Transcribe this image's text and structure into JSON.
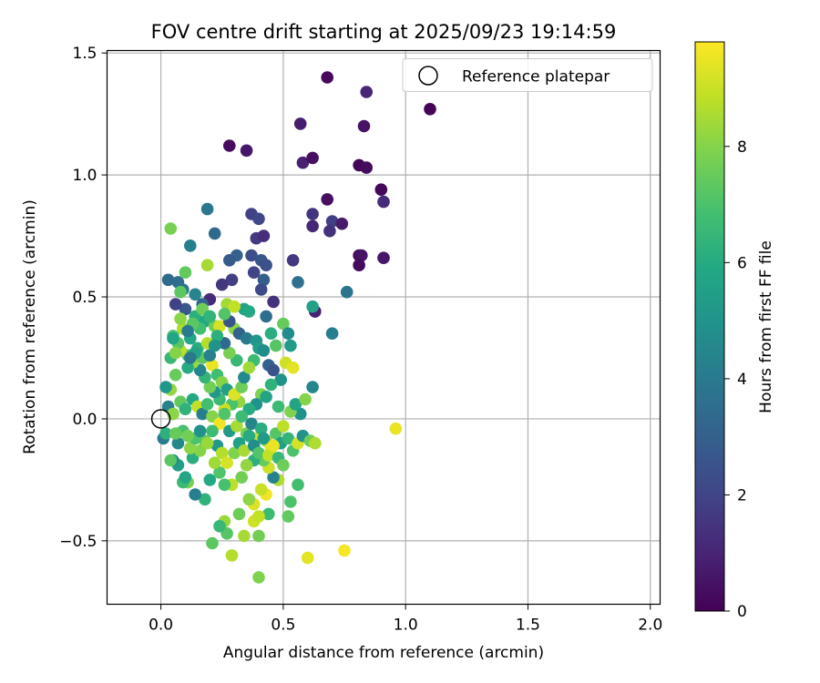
{
  "chart_data": {
    "type": "scatter",
    "title": "FOV centre drift starting at 2025/09/23 19:14:59",
    "xlabel": "Angular distance from reference (arcmin)",
    "ylabel": "Rotation from reference (arcmin)",
    "xlim": [
      -0.22,
      2.04
    ],
    "ylim": [
      -0.76,
      1.51
    ],
    "xticks": [
      0.0,
      0.5,
      1.0,
      1.5,
      2.0
    ],
    "xtick_labels": [
      "0.0",
      "0.5",
      "1.0",
      "1.5",
      "2.0"
    ],
    "yticks": [
      -0.5,
      0.0,
      0.5,
      1.0,
      1.5
    ],
    "ytick_labels": [
      "−0.5",
      "0.0",
      "0.5",
      "1.0",
      "1.5"
    ],
    "grid": true,
    "legend": {
      "position": "top-right",
      "entries": [
        "Reference platepar"
      ]
    },
    "reference_point": {
      "x": 0.0,
      "y": 0.0,
      "label": "Reference platepar"
    },
    "colorbar": {
      "label": "Hours from first FF file",
      "range": [
        0,
        9.8
      ],
      "ticks": [
        0,
        2,
        4,
        6,
        8
      ],
      "tick_labels": [
        "0",
        "2",
        "4",
        "6",
        "8"
      ],
      "colormap": "viridis"
    },
    "points": [
      [
        0.68,
        1.4,
        0.2
      ],
      [
        1.1,
        1.27,
        0.1
      ],
      [
        0.84,
        1.34,
        1.0
      ],
      [
        0.57,
        1.21,
        0.8
      ],
      [
        0.83,
        1.2,
        0.5
      ],
      [
        0.28,
        1.12,
        0.3
      ],
      [
        0.35,
        1.1,
        0.6
      ],
      [
        0.58,
        1.05,
        0.9
      ],
      [
        0.62,
        1.07,
        0.4
      ],
      [
        0.81,
        1.04,
        0.1
      ],
      [
        0.84,
        1.03,
        0.3
      ],
      [
        0.9,
        0.94,
        0.2
      ],
      [
        0.68,
        0.9,
        0.4
      ],
      [
        0.91,
        0.89,
        1.2
      ],
      [
        0.62,
        0.84,
        1.5
      ],
      [
        0.7,
        0.81,
        1.8
      ],
      [
        0.74,
        0.8,
        0.7
      ],
      [
        0.62,
        0.79,
        1.1
      ],
      [
        0.69,
        0.77,
        1.4
      ],
      [
        0.81,
        0.67,
        0.2
      ],
      [
        0.82,
        0.67,
        0.5
      ],
      [
        0.81,
        0.63,
        0.3
      ],
      [
        0.91,
        0.66,
        0.6
      ],
      [
        0.54,
        0.65,
        1.6
      ],
      [
        0.37,
        0.84,
        1.9
      ],
      [
        0.4,
        0.82,
        2.1
      ],
      [
        0.39,
        0.74,
        1.7
      ],
      [
        0.42,
        0.75,
        1.3
      ],
      [
        0.37,
        0.67,
        2.3
      ],
      [
        0.41,
        0.65,
        2.6
      ],
      [
        0.31,
        0.67,
        3.0
      ],
      [
        0.22,
        0.76,
        3.3
      ],
      [
        0.19,
        0.86,
        3.9
      ],
      [
        0.12,
        0.71,
        4.2
      ],
      [
        0.28,
        0.65,
        2.8
      ],
      [
        0.43,
        0.63,
        2.4
      ],
      [
        0.38,
        0.6,
        2.0
      ],
      [
        0.42,
        0.57,
        2.9
      ],
      [
        0.29,
        0.57,
        1.8
      ],
      [
        0.25,
        0.55,
        1.5
      ],
      [
        0.56,
        0.56,
        3.6
      ],
      [
        0.76,
        0.52,
        3.8
      ],
      [
        0.41,
        0.53,
        2.2
      ],
      [
        0.2,
        0.49,
        1.2
      ],
      [
        0.46,
        0.48,
        1.4
      ],
      [
        0.63,
        0.44,
        0.9
      ],
      [
        0.7,
        0.35,
        4.1
      ],
      [
        0.62,
        0.46,
        5.6
      ],
      [
        0.07,
        0.56,
        3.5
      ],
      [
        0.09,
        0.53,
        3.7
      ],
      [
        0.14,
        0.51,
        4.4
      ],
      [
        0.17,
        0.47,
        3.2
      ],
      [
        0.1,
        0.45,
        2.7
      ],
      [
        0.06,
        0.47,
        1.9
      ],
      [
        0.03,
        0.57,
        3.4
      ],
      [
        0.04,
        0.78,
        7.8
      ],
      [
        0.1,
        0.6,
        7.4
      ],
      [
        0.19,
        0.63,
        8.5
      ],
      [
        0.08,
        0.52,
        7.3
      ],
      [
        0.14,
        0.42,
        6.2
      ],
      [
        0.18,
        0.4,
        5.9
      ],
      [
        0.22,
        0.38,
        7.6
      ],
      [
        0.24,
        0.38,
        9.2
      ],
      [
        0.3,
        0.37,
        8.1
      ],
      [
        0.28,
        0.4,
        2.6
      ],
      [
        0.32,
        0.35,
        3.1
      ],
      [
        0.35,
        0.33,
        4.0
      ],
      [
        0.39,
        0.32,
        5.1
      ],
      [
        0.4,
        0.29,
        5.4
      ],
      [
        0.42,
        0.28,
        4.8
      ],
      [
        0.38,
        0.24,
        6.7
      ],
      [
        0.44,
        0.22,
        3.0
      ],
      [
        0.5,
        0.39,
        7.5
      ],
      [
        0.52,
        0.35,
        4.7
      ],
      [
        0.53,
        0.3,
        5.3
      ],
      [
        0.51,
        0.23,
        9.1
      ],
      [
        0.54,
        0.21,
        9.4
      ],
      [
        0.46,
        0.2,
        2.5
      ],
      [
        0.49,
        0.16,
        5.0
      ],
      [
        0.45,
        0.14,
        6.3
      ],
      [
        0.41,
        0.1,
        7.9
      ],
      [
        0.43,
        0.09,
        5.7
      ],
      [
        0.39,
        0.06,
        4.9
      ],
      [
        0.36,
        0.04,
        6.0
      ],
      [
        0.32,
        0.07,
        8.2
      ],
      [
        0.29,
        0.06,
        7.0
      ],
      [
        0.26,
        0.04,
        9.0
      ],
      [
        0.24,
        0.08,
        6.6
      ],
      [
        0.22,
        0.11,
        5.2
      ],
      [
        0.2,
        0.13,
        7.7
      ],
      [
        0.18,
        0.17,
        6.4
      ],
      [
        0.16,
        0.2,
        4.5
      ],
      [
        0.13,
        0.23,
        8.3
      ],
      [
        0.11,
        0.26,
        7.1
      ],
      [
        0.08,
        0.28,
        8.8
      ],
      [
        0.07,
        0.31,
        7.2
      ],
      [
        0.05,
        0.34,
        6.9
      ],
      [
        0.09,
        0.37,
        8.6
      ],
      [
        0.12,
        0.33,
        5.8
      ],
      [
        0.15,
        0.29,
        6.1
      ],
      [
        0.17,
        0.25,
        7.3
      ],
      [
        0.21,
        0.22,
        9.5
      ],
      [
        0.23,
        0.18,
        6.8
      ],
      [
        0.25,
        0.15,
        8.0
      ],
      [
        0.27,
        0.12,
        5.5
      ],
      [
        0.3,
        0.1,
        9.3
      ],
      [
        0.33,
        0.13,
        7.6
      ],
      [
        0.34,
        0.17,
        4.6
      ],
      [
        0.36,
        0.21,
        8.4
      ],
      [
        0.31,
        0.24,
        6.5
      ],
      [
        0.28,
        0.27,
        7.8
      ],
      [
        0.26,
        0.31,
        3.3
      ],
      [
        0.23,
        0.34,
        6.2
      ],
      [
        0.19,
        0.31,
        8.7
      ],
      [
        0.14,
        0.27,
        5.6
      ],
      [
        0.11,
        0.21,
        6.0
      ],
      [
        0.06,
        0.18,
        7.5
      ],
      [
        0.04,
        0.12,
        8.2
      ],
      [
        0.02,
        0.13,
        5.1
      ],
      [
        0.03,
        0.05,
        4.3
      ],
      [
        0.05,
        0.02,
        8.1
      ],
      [
        0.08,
        0.07,
        7.4
      ],
      [
        0.1,
        0.04,
        6.3
      ],
      [
        0.13,
        0.08,
        5.9
      ],
      [
        0.15,
        0.05,
        8.9
      ],
      [
        0.17,
        0.02,
        4.2
      ],
      [
        0.19,
        0.06,
        6.8
      ],
      [
        0.21,
        0.01,
        8.0
      ],
      [
        0.24,
        -0.02,
        9.6
      ],
      [
        0.26,
        0.02,
        7.1
      ],
      [
        0.28,
        -0.05,
        5.3
      ],
      [
        0.31,
        -0.03,
        8.5
      ],
      [
        0.33,
        0.01,
        6.7
      ],
      [
        0.35,
        -0.06,
        7.8
      ],
      [
        0.37,
        -0.02,
        4.4
      ],
      [
        0.39,
        -0.08,
        9.0
      ],
      [
        0.41,
        -0.04,
        6.1
      ],
      [
        0.43,
        -0.09,
        8.3
      ],
      [
        0.45,
        -0.12,
        9.4
      ],
      [
        0.47,
        -0.06,
        7.2
      ],
      [
        0.49,
        -0.1,
        5.5
      ],
      [
        0.5,
        -0.03,
        8.8
      ],
      [
        0.52,
        -0.08,
        6.4
      ],
      [
        0.54,
        -0.13,
        7.0
      ],
      [
        0.56,
        -0.1,
        9.2
      ],
      [
        0.58,
        -0.07,
        5.0
      ],
      [
        0.61,
        -0.09,
        7.6
      ],
      [
        0.63,
        -0.1,
        8.6
      ],
      [
        0.57,
        0.02,
        4.9
      ],
      [
        0.53,
        0.03,
        7.9
      ],
      [
        0.48,
        0.05,
        6.6
      ],
      [
        0.55,
        0.06,
        5.7
      ],
      [
        0.59,
        0.08,
        8.0
      ],
      [
        0.62,
        0.13,
        4.5
      ],
      [
        0.96,
        -0.04,
        9.5
      ],
      [
        0.75,
        -0.54,
        9.7
      ],
      [
        0.6,
        -0.57,
        9.4
      ],
      [
        0.4,
        -0.65,
        7.9
      ],
      [
        0.29,
        -0.56,
        8.7
      ],
      [
        0.21,
        -0.51,
        7.3
      ],
      [
        0.34,
        -0.48,
        8.5
      ],
      [
        0.27,
        -0.47,
        7.2
      ],
      [
        0.4,
        -0.48,
        7.7
      ],
      [
        0.38,
        -0.42,
        9.1
      ],
      [
        0.44,
        -0.39,
        6.7
      ],
      [
        0.52,
        -0.4,
        7.4
      ],
      [
        0.4,
        -0.4,
        8.9
      ],
      [
        0.32,
        -0.39,
        7.6
      ],
      [
        0.26,
        -0.42,
        8.3
      ],
      [
        0.24,
        -0.44,
        6.5
      ],
      [
        0.38,
        -0.35,
        9.3
      ],
      [
        0.36,
        -0.33,
        8.1
      ],
      [
        0.43,
        -0.31,
        9.6
      ],
      [
        0.41,
        -0.29,
        9.0
      ],
      [
        0.53,
        -0.34,
        7.0
      ],
      [
        0.56,
        -0.27,
        6.8
      ],
      [
        0.48,
        -0.25,
        8.6
      ],
      [
        0.46,
        -0.24,
        4.3
      ],
      [
        0.44,
        -0.2,
        9.1
      ],
      [
        0.42,
        -0.17,
        7.5
      ],
      [
        0.38,
        -0.17,
        6.2
      ],
      [
        0.35,
        -0.19,
        8.2
      ],
      [
        0.33,
        -0.24,
        7.7
      ],
      [
        0.29,
        -0.27,
        8.8
      ],
      [
        0.26,
        -0.27,
        6.9
      ],
      [
        0.24,
        -0.22,
        7.1
      ],
      [
        0.22,
        -0.18,
        8.4
      ],
      [
        0.2,
        -0.25,
        5.9
      ],
      [
        0.18,
        -0.33,
        6.3
      ],
      [
        0.14,
        -0.31,
        4.1
      ],
      [
        0.11,
        -0.26,
        7.8
      ],
      [
        0.09,
        -0.26,
        6.6
      ],
      [
        0.07,
        -0.19,
        5.4
      ],
      [
        0.05,
        -0.17,
        4.7
      ],
      [
        0.04,
        -0.17,
        7.3
      ],
      [
        0.1,
        -0.24,
        5.8
      ],
      [
        0.13,
        -0.16,
        6.1
      ],
      [
        0.16,
        -0.13,
        8.0
      ],
      [
        0.18,
        -0.09,
        7.4
      ],
      [
        0.21,
        -0.05,
        6.7
      ],
      [
        0.23,
        -0.11,
        5.2
      ],
      [
        0.25,
        -0.14,
        8.7
      ],
      [
        0.27,
        -0.18,
        9.2
      ],
      [
        0.3,
        -0.14,
        7.9
      ],
      [
        0.32,
        -0.1,
        5.6
      ],
      [
        0.34,
        -0.13,
        8.5
      ],
      [
        0.36,
        -0.07,
        6.0
      ],
      [
        0.38,
        -0.11,
        4.8
      ],
      [
        0.4,
        -0.14,
        7.1
      ],
      [
        0.42,
        -0.08,
        5.3
      ],
      [
        0.44,
        -0.15,
        8.9
      ],
      [
        0.46,
        -0.11,
        9.5
      ],
      [
        0.48,
        -0.16,
        6.5
      ],
      [
        0.5,
        -0.19,
        7.6
      ],
      [
        0.12,
        -0.12,
        8.1
      ],
      [
        0.14,
        -0.08,
        7.0
      ],
      [
        0.09,
        -0.05,
        6.9
      ],
      [
        0.07,
        -0.1,
        4.6
      ],
      [
        0.11,
        -0.07,
        7.7
      ],
      [
        0.01,
        -0.08,
        4.0
      ],
      [
        0.02,
        -0.06,
        6.2
      ],
      [
        0.06,
        -0.06,
        7.5
      ],
      [
        0.16,
        -0.05,
        5.0
      ],
      [
        0.19,
        -0.1,
        8.3
      ],
      [
        0.27,
        0.47,
        8.4
      ],
      [
        0.34,
        0.45,
        5.6
      ],
      [
        0.3,
        0.46,
        8.9
      ],
      [
        0.26,
        0.43,
        7.1
      ],
      [
        0.16,
        0.37,
        6.8
      ],
      [
        0.13,
        0.39,
        7.3
      ],
      [
        0.11,
        0.36,
        4.0
      ],
      [
        0.08,
        0.41,
        8.1
      ],
      [
        0.05,
        0.33,
        5.8
      ],
      [
        0.17,
        0.45,
        7.6
      ],
      [
        0.2,
        0.42,
        6.4
      ],
      [
        0.36,
        0.44,
        5.9
      ],
      [
        0.45,
        0.35,
        6.1
      ],
      [
        0.43,
        0.42,
        3.5
      ],
      [
        0.47,
        0.3,
        7.2
      ],
      [
        0.04,
        0.25,
        6.5
      ],
      [
        0.06,
        0.27,
        8.0
      ],
      [
        0.12,
        0.25,
        3.9
      ],
      [
        0.2,
        0.26,
        4.3
      ],
      [
        0.22,
        0.3,
        5.0
      ]
    ]
  }
}
